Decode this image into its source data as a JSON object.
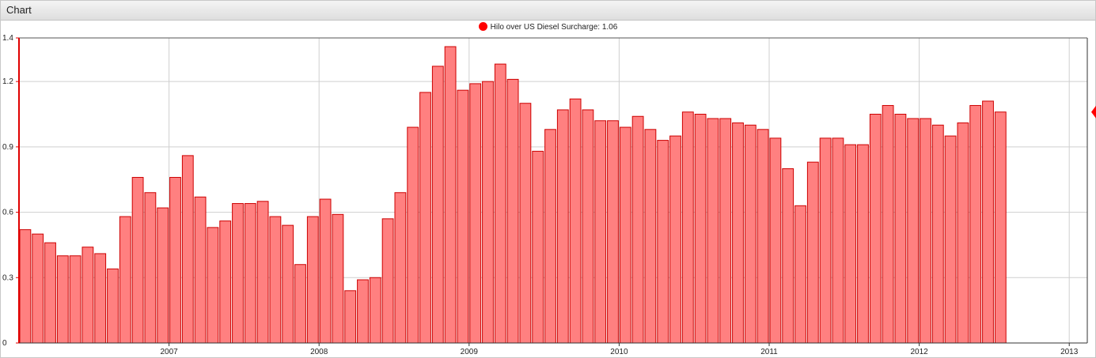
{
  "window": {
    "title": "Chart"
  },
  "legend": {
    "series_label": "Hilo over US Diesel Surcharge: 1.06"
  },
  "colors": {
    "bar_fill": "#ff8080",
    "bar_stroke": "#cc0000",
    "accent": "#ff0000",
    "grid": "#cfcfcf"
  },
  "chart_data": {
    "type": "bar",
    "title": "",
    "xlabel": "",
    "ylabel": "",
    "ylim": [
      0,
      1.4
    ],
    "y_ticks": [
      "0",
      "0.3",
      "0.6",
      "0.9",
      "1.2",
      "1.4"
    ],
    "x_ticks": [
      "2007",
      "2008",
      "2009",
      "2010",
      "2011",
      "2012",
      "2013"
    ],
    "grid": true,
    "legend_position": "top-center",
    "series": [
      {
        "name": "Hilo over US Diesel Surcharge",
        "start": "2006-01",
        "frequency": "monthly",
        "values": [
          0.52,
          0.5,
          0.46,
          0.4,
          0.4,
          0.44,
          0.41,
          0.34,
          0.58,
          0.76,
          0.69,
          0.62,
          0.76,
          0.86,
          0.67,
          0.53,
          0.56,
          0.64,
          0.64,
          0.65,
          0.58,
          0.54,
          0.36,
          0.58,
          0.66,
          0.59,
          0.24,
          0.29,
          0.3,
          0.57,
          0.69,
          0.99,
          1.15,
          1.27,
          1.36,
          1.16,
          1.19,
          1.2,
          1.28,
          1.21,
          1.1,
          0.88,
          0.98,
          1.07,
          1.12,
          1.07,
          1.02,
          1.02,
          0.99,
          1.04,
          0.98,
          0.93,
          0.95,
          1.06,
          1.05,
          1.03,
          1.03,
          1.01,
          1.0,
          0.98,
          0.94,
          0.8,
          0.63,
          0.83,
          0.94,
          0.94,
          0.91,
          0.91,
          1.05,
          1.09,
          1.05,
          1.03,
          1.03,
          1.0,
          0.95,
          1.01,
          1.09,
          1.11,
          1.06
        ]
      }
    ]
  }
}
